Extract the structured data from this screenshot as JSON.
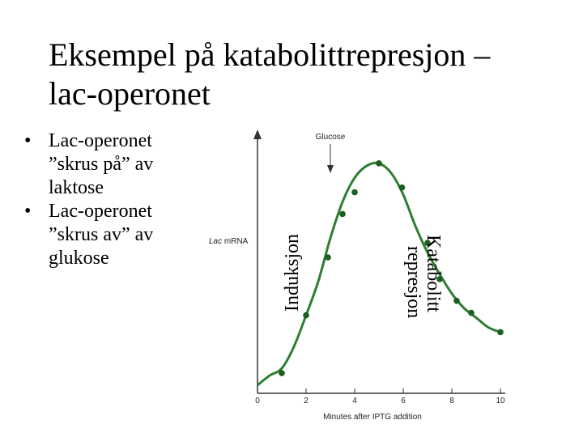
{
  "slide": {
    "title_line1": "Eksempel på katabolittrepresjon –",
    "title_line2": "lac-operonet",
    "bullets": [
      {
        "line1": "Lac-operonet",
        "line2": "”skrus på” av",
        "line3": "laktose"
      },
      {
        "line1": "Lac-operonet",
        "line2": "”skrus av” av",
        "line3": "glukose"
      }
    ],
    "bullet_symbol": "•"
  },
  "chart_data": {
    "type": "line",
    "xlabel": "Minutes after IPTG addition",
    "ylabel_italic": "Lac",
    "ylabel_rest": " mRNA",
    "xlim": [
      0,
      10
    ],
    "xticks": [
      "0",
      "2",
      "4",
      "6",
      "8",
      "10"
    ],
    "annotation": "Glucose",
    "annotation_x": 3.0,
    "label_induction": "Induksjon",
    "label_repression_line1": "Katabolitt",
    "label_repression_line2": "represjon",
    "points": [
      {
        "x": 1.0,
        "y": 0.05
      },
      {
        "x": 2.0,
        "y": 0.29
      },
      {
        "x": 2.9,
        "y": 0.53
      },
      {
        "x": 3.5,
        "y": 0.71
      },
      {
        "x": 4.0,
        "y": 0.8
      },
      {
        "x": 5.0,
        "y": 0.92
      },
      {
        "x": 5.95,
        "y": 0.82
      },
      {
        "x": 7.0,
        "y": 0.59
      },
      {
        "x": 7.5,
        "y": 0.44
      },
      {
        "x": 8.2,
        "y": 0.35
      },
      {
        "x": 8.8,
        "y": 0.3
      },
      {
        "x": 10.0,
        "y": 0.22
      }
    ],
    "curve": [
      [
        0,
        0
      ],
      [
        0.5,
        0.04
      ],
      [
        1.0,
        0.07
      ],
      [
        1.5,
        0.16
      ],
      [
        2.0,
        0.29
      ],
      [
        2.5,
        0.43
      ],
      [
        3.0,
        0.61
      ],
      [
        3.5,
        0.76
      ],
      [
        4.0,
        0.86
      ],
      [
        4.5,
        0.91
      ],
      [
        5.0,
        0.92
      ],
      [
        5.5,
        0.88
      ],
      [
        6.0,
        0.79
      ],
      [
        6.5,
        0.66
      ],
      [
        7.0,
        0.55
      ],
      [
        7.5,
        0.46
      ],
      [
        8.0,
        0.38
      ],
      [
        8.5,
        0.32
      ],
      [
        9.0,
        0.28
      ],
      [
        9.5,
        0.24
      ],
      [
        10.0,
        0.22
      ]
    ],
    "colors": {
      "curve": "#2e7d32",
      "point": "#1b5e20",
      "axis": "#333333"
    }
  }
}
